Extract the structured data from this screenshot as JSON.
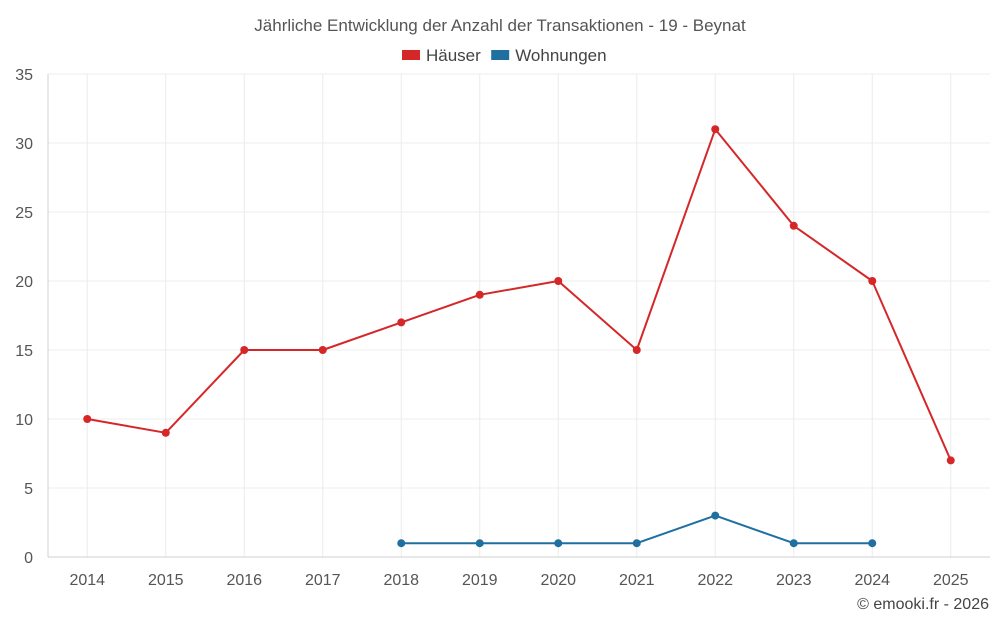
{
  "chart_data": {
    "type": "line",
    "title": "Jährliche Entwicklung der Anzahl der Transaktionen - 19 - Beynat",
    "categories": [
      "2014",
      "2015",
      "2016",
      "2017",
      "2018",
      "2019",
      "2020",
      "2021",
      "2022",
      "2023",
      "2024",
      "2025"
    ],
    "series": [
      {
        "name": "Häuser",
        "color": "#d62728",
        "values": [
          10,
          9,
          15,
          15,
          17,
          19,
          20,
          15,
          31,
          24,
          20,
          7
        ]
      },
      {
        "name": "Wohnungen",
        "color": "#1f6fa1",
        "values": [
          null,
          null,
          null,
          null,
          1,
          1,
          1,
          1,
          3,
          1,
          1,
          null
        ]
      }
    ],
    "ylim": [
      0,
      35
    ],
    "yticks": [
      0,
      5,
      10,
      15,
      20,
      25,
      30,
      35
    ],
    "xlabel": "",
    "ylabel": "",
    "grid": true,
    "legend_position": "top-center"
  },
  "credit": "© emooki.fr - 2026"
}
